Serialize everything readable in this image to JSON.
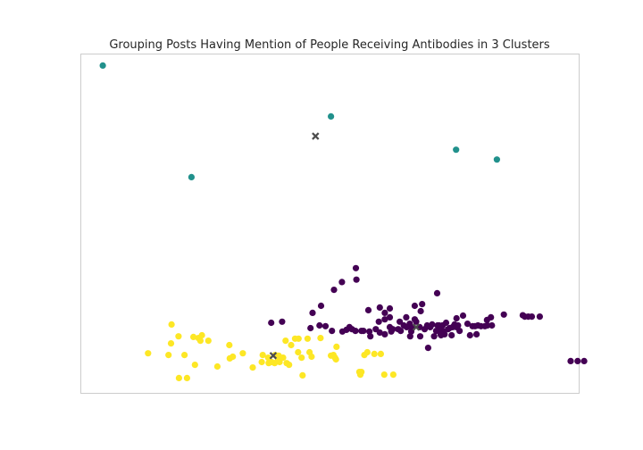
{
  "chart_data": {
    "type": "scatter",
    "title": "Grouping Posts Having Mention of People Receiving Antibodies in 3 Clusters",
    "xlabel": "",
    "ylabel": "",
    "grid": false,
    "axes_visible": false,
    "xlim": [
      0,
      100
    ],
    "ylim": [
      0,
      100
    ],
    "colors": {
      "cluster_0": "#440154",
      "cluster_1": "#21918c",
      "cluster_2": "#fde725",
      "centroid": "#4d4d4d",
      "frame": "#cccccc"
    },
    "series": [
      {
        "cluster": 0,
        "points": [
          [
            38.2,
            20.8
          ],
          [
            40.4,
            21.1
          ],
          [
            46.5,
            23.7
          ],
          [
            48.2,
            25.8
          ],
          [
            47.9,
            20.0
          ],
          [
            49.1,
            19.8
          ],
          [
            50.4,
            18.4
          ],
          [
            52.5,
            18.2
          ],
          [
            53.9,
            19.5
          ],
          [
            54.4,
            18.9
          ],
          [
            55.1,
            18.4
          ],
          [
            56.7,
            18.4
          ],
          [
            57.9,
            18.2
          ],
          [
            59.2,
            18.9
          ],
          [
            57.7,
            24.5
          ],
          [
            60.0,
            25.3
          ],
          [
            61.0,
            23.7
          ],
          [
            62.0,
            22.4
          ],
          [
            64.8,
            20.0
          ],
          [
            66.0,
            20.5
          ],
          [
            67.0,
            21.8
          ],
          [
            62.0,
            19.5
          ],
          [
            62.6,
            18.9
          ],
          [
            62.3,
            18.2
          ],
          [
            63.7,
            18.9
          ],
          [
            64.2,
            18.4
          ],
          [
            65.4,
            19.5
          ],
          [
            66.5,
            19.2
          ],
          [
            67.3,
            21.1
          ],
          [
            68.0,
            19.5
          ],
          [
            69.0,
            18.9
          ],
          [
            69.5,
            20.0
          ],
          [
            70.1,
            19.5
          ],
          [
            70.5,
            20.3
          ],
          [
            71.6,
            20.0
          ],
          [
            72.0,
            19.2
          ],
          [
            67.0,
            25.8
          ],
          [
            68.5,
            26.3
          ],
          [
            68.2,
            24.2
          ],
          [
            71.5,
            29.5
          ],
          [
            71.9,
            20.0
          ],
          [
            72.3,
            17.1
          ],
          [
            72.6,
            20.0
          ],
          [
            73.3,
            20.8
          ],
          [
            73.7,
            18.9
          ],
          [
            72.6,
            18.4
          ],
          [
            73.0,
            17.4
          ],
          [
            74.0,
            19.2
          ],
          [
            74.6,
            19.5
          ],
          [
            75.0,
            20.3
          ],
          [
            75.4,
            22.1
          ],
          [
            75.4,
            19.5
          ],
          [
            75.7,
            20.0
          ],
          [
            76.7,
            22.9
          ],
          [
            78.1,
            17.1
          ],
          [
            78.6,
            19.8
          ],
          [
            79.1,
            19.8
          ],
          [
            79.7,
            20.0
          ],
          [
            80.3,
            19.8
          ],
          [
            81.1,
            19.8
          ],
          [
            81.6,
            20.0
          ],
          [
            82.3,
            22.4
          ],
          [
            82.5,
            20.0
          ],
          [
            84.9,
            23.2
          ],
          [
            88.7,
            23.0
          ],
          [
            89.1,
            22.6
          ],
          [
            89.8,
            22.6
          ],
          [
            90.5,
            22.6
          ],
          [
            92.1,
            22.6
          ],
          [
            81.5,
            21.6
          ],
          [
            69.7,
            13.4
          ],
          [
            72.2,
            17.4
          ],
          [
            71.9,
            18.9
          ],
          [
            50.8,
            30.5
          ],
          [
            52.4,
            32.8
          ],
          [
            55.3,
            33.5
          ],
          [
            55.2,
            36.9
          ],
          [
            61.0,
            17.4
          ],
          [
            60.0,
            17.9
          ],
          [
            56.3,
            18.4
          ],
          [
            58.1,
            16.8
          ],
          [
            62.0,
            25.0
          ],
          [
            64.0,
            21.1
          ],
          [
            65.3,
            22.4
          ],
          [
            66.3,
            18.2
          ],
          [
            66.1,
            16.8
          ],
          [
            61.0,
            21.8
          ],
          [
            59.8,
            21.1
          ],
          [
            70.9,
            16.8
          ],
          [
            71.3,
            18.4
          ],
          [
            76.0,
            18.4
          ],
          [
            68.1,
            16.8
          ],
          [
            74.4,
            17.1
          ],
          [
            98.3,
            9.5
          ],
          [
            99.7,
            9.5
          ],
          [
            101.0,
            9.5
          ],
          [
            79.4,
            17.4
          ],
          [
            77.6,
            20.5
          ],
          [
            46.1,
            19.2
          ],
          [
            53.3,
            18.7
          ]
        ]
      },
      {
        "cluster": 1,
        "points": [
          [
            4.4,
            96.6
          ],
          [
            22.2,
            63.7
          ],
          [
            50.2,
            81.6
          ],
          [
            75.3,
            71.8
          ],
          [
            83.5,
            68.9
          ]
        ]
      },
      {
        "cluster": 2,
        "points": [
          [
            13.5,
            11.8
          ],
          [
            17.6,
            11.3
          ],
          [
            18.1,
            14.7
          ],
          [
            18.2,
            20.3
          ],
          [
            19.6,
            16.8
          ],
          [
            20.8,
            11.3
          ],
          [
            22.6,
            16.6
          ],
          [
            22.9,
            8.4
          ],
          [
            23.6,
            16.3
          ],
          [
            24.0,
            15.5
          ],
          [
            24.3,
            17.1
          ],
          [
            25.6,
            15.5
          ],
          [
            27.4,
            7.9
          ],
          [
            29.9,
            10.3
          ],
          [
            29.8,
            14.2
          ],
          [
            30.5,
            10.8
          ],
          [
            32.5,
            11.8
          ],
          [
            34.5,
            7.6
          ],
          [
            36.3,
            9.2
          ],
          [
            36.5,
            11.3
          ],
          [
            37.7,
            8.9
          ],
          [
            38.9,
            8.9
          ],
          [
            39.4,
            10.8
          ],
          [
            39.7,
            11.1
          ],
          [
            39.9,
            9.2
          ],
          [
            40.6,
            10.5
          ],
          [
            41.1,
            15.5
          ],
          [
            41.3,
            8.9
          ],
          [
            41.8,
            8.4
          ],
          [
            42.2,
            14.2
          ],
          [
            43.0,
            16.1
          ],
          [
            43.6,
            12.1
          ],
          [
            43.7,
            16.1
          ],
          [
            44.3,
            10.5
          ],
          [
            44.5,
            5.3
          ],
          [
            45.5,
            16.1
          ],
          [
            45.9,
            12.1
          ],
          [
            46.3,
            10.8
          ],
          [
            48.1,
            16.3
          ],
          [
            50.2,
            11.1
          ],
          [
            50.7,
            11.3
          ],
          [
            51.0,
            10.5
          ],
          [
            51.2,
            10.0
          ],
          [
            51.3,
            13.7
          ],
          [
            55.9,
            6.3
          ],
          [
            56.9,
            11.3
          ],
          [
            56.1,
            5.5
          ],
          [
            56.3,
            6.3
          ],
          [
            57.5,
            12.1
          ],
          [
            58.9,
            11.6
          ],
          [
            60.2,
            11.6
          ],
          [
            60.9,
            5.5
          ],
          [
            62.7,
            5.5
          ],
          [
            21.3,
            4.5
          ],
          [
            19.7,
            4.5
          ],
          [
            39.0,
            11.3
          ],
          [
            39.6,
            10.3
          ],
          [
            38.3,
            9.2
          ],
          [
            39.5,
            9.5
          ],
          [
            37.6,
            10.5
          ]
        ]
      }
    ],
    "centroids": [
      [
        47.1,
        75.8
      ],
      [
        67.3,
        19.5
      ],
      [
        38.6,
        11.1
      ]
    ]
  }
}
